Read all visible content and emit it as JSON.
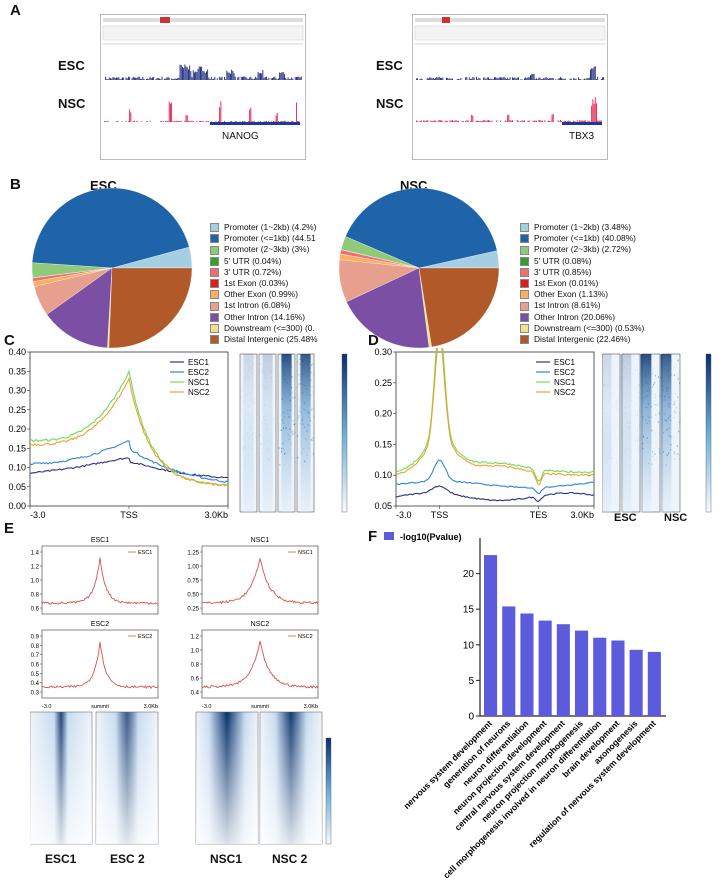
{
  "panels": {
    "a": "A",
    "b": "B",
    "c": "C",
    "d": "D",
    "e": "E",
    "f": "F"
  },
  "browser": {
    "tracks": [
      "ESC",
      "NSC"
    ],
    "genes": [
      "NANOG",
      "TBX3"
    ]
  },
  "pies": {
    "esc": {
      "title": "ESC",
      "legend": [
        "Promoter (1~2kb) (4.2%)",
        "Promoter (<=1kb) (44.51",
        "Promoter (2~3kb) (3%)",
        "5' UTR (0.04%)",
        "3' UTR (0.72%)",
        "1st Exon (0.03%)",
        "Other Exon (0.99%)",
        "1st Intron (6.08%)",
        "Other Intron (14.16%)",
        "Downstream (<=300) (0.",
        "Distal Intergenic (25.48%"
      ]
    },
    "nsc": {
      "title": "NSC",
      "legend": [
        "Promoter (1~2kb) (3.48%)",
        "Promoter (<=1kb) (40.08%)",
        "Promoter (2~3kb) (2.72%)",
        "5' UTR (0.08%)",
        "3' UTR (0.85%)",
        "1st Exon (0.01%)",
        "Other Exon (1.13%)",
        "1st Intron (8.61%)",
        "Other Intron (20.06%)",
        "Downstream (<=300) (0.53%)",
        "Distal Intergenic (22.46%)"
      ]
    },
    "colors": [
      "#a6cee3",
      "#1f63a8",
      "#8fc97a",
      "#33a02c",
      "#f26d6d",
      "#e31a1c",
      "#fdae61",
      "#e7a08e",
      "#7b4fa3",
      "#f2e08a",
      "#b15928"
    ]
  },
  "profiles": {
    "c": {
      "yticks": [
        "0.00",
        "0.05",
        "0.10",
        "0.15",
        "0.20",
        "0.25",
        "0.30",
        "0.35",
        "0.40"
      ],
      "xlabels": [
        "-3.0",
        "TSS",
        "3.0Kb"
      ],
      "legend": [
        "ESC1",
        "ESC2",
        "NSC1",
        "NSC2"
      ]
    },
    "d": {
      "yticks": [
        "0.05",
        "0.10",
        "0.15",
        "0.20",
        "0.25",
        "0.30"
      ],
      "xlabels": [
        "-3.0",
        "TSS",
        "TES",
        "3.0Kb"
      ],
      "legend": [
        "ESC1",
        "ESC2",
        "NSC1",
        "NSC2"
      ],
      "heat_labels": [
        "ESC",
        "NSC"
      ]
    },
    "colors": {
      "ESC1": "#2b2f8f",
      "ESC2": "#2f86d6",
      "NSC1": "#6fdc5a",
      "NSC2": "#f0a030"
    }
  },
  "summits": {
    "plots": [
      {
        "title": "ESC1",
        "legend": "ESC1",
        "yticks": [
          "0.6",
          "0.8",
          "1.0",
          "1.2",
          "1.4"
        ]
      },
      {
        "title": "NSC1",
        "legend": "NSC1",
        "yticks": [
          "0.25",
          "0.50",
          "0.75",
          "1.00",
          "1.25"
        ]
      },
      {
        "title": "ESC2",
        "legend": "ESC2",
        "yticks": [
          "0.3",
          "0.4",
          "0.5",
          "0.6",
          "0.7",
          "0.8",
          "0.9"
        ]
      },
      {
        "title": "NSC2",
        "legend": "NSC2",
        "yticks": [
          "0.4",
          "0.6",
          "0.8",
          "1.0",
          "1.2"
        ]
      }
    ],
    "xlabels": [
      "-3.0",
      "summit",
      "3.0Kb"
    ],
    "heat_labels": [
      "ESC1",
      "ESC 2",
      "NSC1",
      "NSC 2"
    ]
  },
  "chart_data": {
    "type": "bar",
    "title": "",
    "legend": "-log10(Pvalue)",
    "ylabel": "",
    "ylim": [
      0,
      25
    ],
    "yticks": [
      "0",
      "5",
      "10",
      "15",
      "20"
    ],
    "categories": [
      "nervous system development",
      "generation of neurons",
      "neuron differentiation",
      "neuron projection development",
      "central nervous system development",
      "neuron projection morphogenesis",
      "cell morphogenesis involved in neuron differentiation",
      "brain development",
      "axonogenesis",
      "regulation of nervous system development"
    ],
    "values": [
      22.6,
      15.4,
      14.4,
      13.4,
      12.9,
      12.0,
      11.0,
      10.6,
      9.3,
      9.0
    ],
    "color": "#5b5bdc"
  }
}
